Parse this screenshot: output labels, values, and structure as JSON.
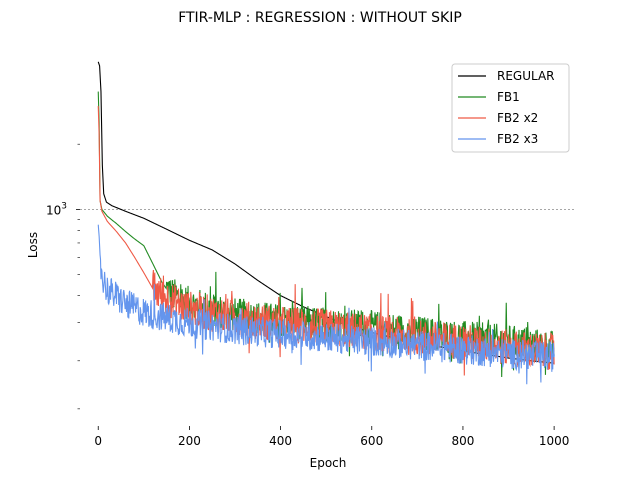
{
  "chart_data": {
    "type": "line",
    "title": "FTIR-MLP : REGRESSION : WITHOUT SKIP",
    "xlabel": "Epoch",
    "ylabel": "Loss",
    "xlim": [
      -40,
      1048
    ],
    "ylim": [
      100,
      5000
    ],
    "yscale": "log",
    "x_ticks": [
      0,
      200,
      400,
      600,
      800,
      1000
    ],
    "y_major_ticks": [
      {
        "value": 1000,
        "label": "10",
        "exponent": "3"
      }
    ],
    "y_minor_ticks": [
      120,
      200,
      300,
      400,
      500,
      600,
      700,
      800,
      900,
      2000
    ],
    "reference_line": {
      "y": 1000,
      "style": "dashed",
      "color": "#888888"
    },
    "legend_position": "top-right",
    "series": [
      {
        "name": "REGULAR",
        "color": "#000000",
        "points": [
          [
            0,
            4800
          ],
          [
            3,
            4600
          ],
          [
            6,
            3500
          ],
          [
            9,
            1600
          ],
          [
            12,
            1180
          ],
          [
            18,
            1080
          ],
          [
            30,
            1040
          ],
          [
            60,
            980
          ],
          [
            100,
            910
          ],
          [
            150,
            810
          ],
          [
            200,
            720
          ],
          [
            250,
            650
          ],
          [
            300,
            560
          ],
          [
            350,
            470
          ],
          [
            400,
            400
          ],
          [
            450,
            355
          ],
          [
            500,
            320
          ],
          [
            550,
            290
          ],
          [
            600,
            270
          ],
          [
            650,
            255
          ],
          [
            700,
            242
          ],
          [
            750,
            232
          ],
          [
            800,
            222
          ],
          [
            850,
            214
          ],
          [
            900,
            206
          ],
          [
            950,
            200
          ],
          [
            1000,
            195
          ]
        ],
        "noise": 0.0,
        "noise_from": 1000
      },
      {
        "name": "FB1",
        "color": "#228b22",
        "points": [
          [
            0,
            3500
          ],
          [
            2,
            2500
          ],
          [
            4,
            1100
          ],
          [
            8,
            1000
          ],
          [
            20,
            930
          ],
          [
            40,
            860
          ],
          [
            60,
            790
          ],
          [
            80,
            730
          ],
          [
            100,
            680
          ],
          [
            120,
            560
          ],
          [
            140,
            460
          ],
          [
            160,
            400
          ],
          [
            200,
            360
          ],
          [
            300,
            320
          ],
          [
            400,
            300
          ],
          [
            500,
            290
          ],
          [
            600,
            280
          ],
          [
            700,
            265
          ],
          [
            800,
            250
          ],
          [
            900,
            240
          ],
          [
            1000,
            225
          ]
        ],
        "noise": 0.16,
        "noise_from": 150
      },
      {
        "name": "FB2 x2",
        "color": "#ef5a46",
        "points": [
          [
            0,
            3000
          ],
          [
            2,
            2200
          ],
          [
            4,
            1100
          ],
          [
            8,
            980
          ],
          [
            20,
            880
          ],
          [
            40,
            790
          ],
          [
            60,
            700
          ],
          [
            80,
            600
          ],
          [
            100,
            510
          ],
          [
            120,
            430
          ],
          [
            140,
            390
          ],
          [
            200,
            340
          ],
          [
            300,
            310
          ],
          [
            400,
            290
          ],
          [
            500,
            280
          ],
          [
            600,
            265
          ],
          [
            700,
            250
          ],
          [
            800,
            240
          ],
          [
            900,
            225
          ],
          [
            1000,
            215
          ]
        ],
        "noise": 0.17,
        "noise_from": 120
      },
      {
        "name": "FB2 x3",
        "color": "#6495ed",
        "points": [
          [
            0,
            850
          ],
          [
            2,
            750
          ],
          [
            5,
            560
          ],
          [
            10,
            470
          ],
          [
            20,
            420
          ],
          [
            40,
            390
          ],
          [
            60,
            360
          ],
          [
            100,
            330
          ],
          [
            150,
            310
          ],
          [
            200,
            295
          ],
          [
            300,
            275
          ],
          [
            400,
            262
          ],
          [
            500,
            252
          ],
          [
            600,
            242
          ],
          [
            700,
            232
          ],
          [
            800,
            222
          ],
          [
            900,
            212
          ],
          [
            1000,
            205
          ]
        ],
        "noise": 0.14,
        "noise_from": 5
      }
    ]
  }
}
